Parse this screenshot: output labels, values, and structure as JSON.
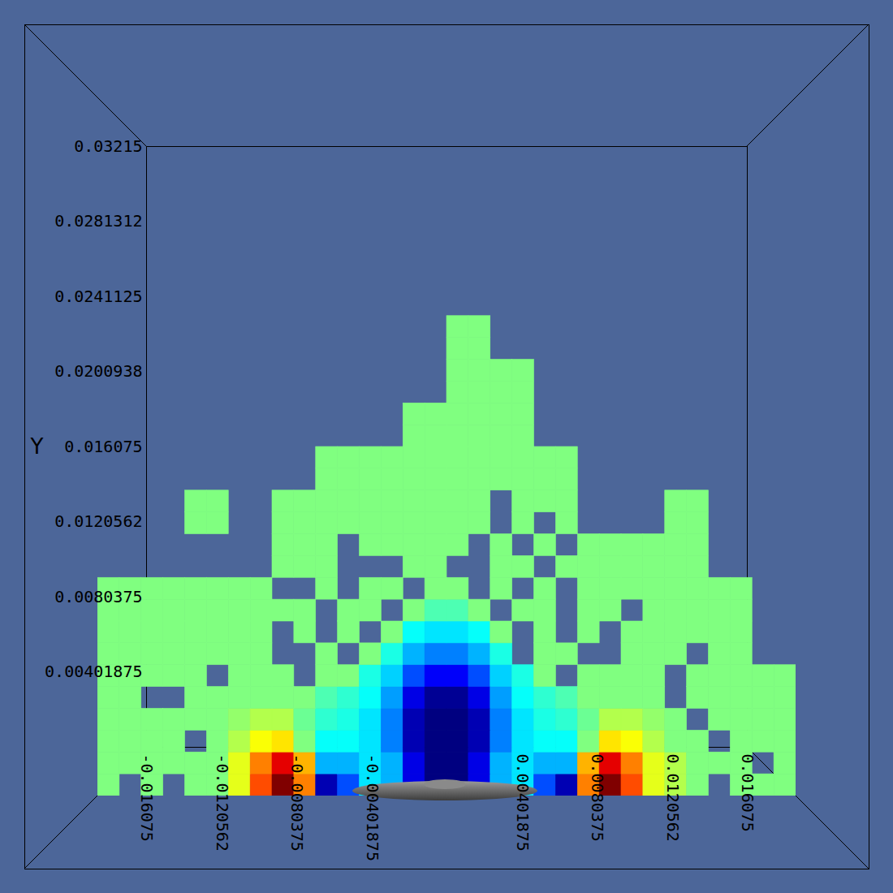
{
  "chart_data": {
    "type": "heatmap",
    "y_label": "Y",
    "xlim": [
      -0.016075,
      0.016075
    ],
    "ylim": [
      0,
      0.03215
    ],
    "xticks": [
      -0.016075,
      -0.0120562,
      -0.0080375,
      -0.00401875,
      0.00401875,
      0.0080375,
      0.0120562,
      0.016075
    ],
    "yticks": [
      0.00401875,
      0.0080375,
      0.0120562,
      0.016075,
      0.0200938,
      0.0241125,
      0.0281312,
      0.03215
    ],
    "value_range": [
      0,
      1
    ],
    "x_edges": [
      -0.016075,
      -0.0150703,
      -0.0140656,
      -0.0130609,
      -0.0120562,
      -0.0110516,
      -0.0100469,
      -0.0090422,
      -0.0080375,
      -0.0070328,
      -0.0060281,
      -0.0050234,
      -0.0040188,
      -0.0030141,
      -0.0020094,
      -0.0010047,
      0,
      0.0010047,
      0.0020094,
      0.0030141,
      0.0040188,
      0.0050234,
      0.0060281,
      0.0070328,
      0.0080375,
      0.0090422,
      0.0100469,
      0.0110516,
      0.0120562,
      0.0130609,
      0.0140656,
      0.0150703,
      0.016075
    ],
    "y_edges": [
      0,
      0.0010047,
      0.0020094,
      0.0030141,
      0.0040188,
      0.0050234,
      0.0060281,
      0.0070328,
      0.0080375,
      0.0090422,
      0.0100469,
      0.0110516,
      0.0120562,
      0.0130609,
      0.0140656,
      0.0150703,
      0.016075,
      0.0170797,
      0.0180844,
      0.0190891,
      0.0200938,
      0.0210984,
      0.0221031
    ],
    "values": [
      [
        0.5,
        null,
        0.5,
        null,
        0.5,
        0.5,
        0.6,
        0.8,
        1,
        0.75,
        0.05,
        0.2,
        0.35,
        0.3,
        0.1,
        0,
        0,
        0.1,
        0.3,
        0.35,
        0.2,
        0.05,
        0.75,
        1,
        0.8,
        0.6,
        0.55,
        0.5,
        null,
        0.5,
        0.5,
        0.5
      ],
      [
        0.5,
        0.5,
        0.5,
        0.5,
        0.5,
        0.5,
        0.6,
        0.75,
        0.9,
        0.7,
        0.3,
        0.3,
        0.35,
        0.3,
        0.1,
        0,
        0,
        0.1,
        0.3,
        0.35,
        0.3,
        0.3,
        0.7,
        0.9,
        0.75,
        0.6,
        0.55,
        0.5,
        0.5,
        0.5,
        null,
        0.5
      ],
      [
        0.5,
        0.5,
        0.5,
        0.5,
        null,
        0.5,
        0.55,
        0.62,
        0.65,
        0.5,
        0.38,
        0.38,
        0.35,
        0.25,
        0.05,
        0,
        0,
        0.05,
        0.25,
        0.35,
        0.38,
        0.38,
        0.5,
        0.65,
        0.62,
        0.55,
        0.5,
        0.5,
        null,
        0.5,
        0.5,
        0.5
      ],
      [
        0.5,
        0.5,
        0.5,
        0.5,
        0.5,
        0.5,
        0.52,
        0.55,
        0.55,
        0.48,
        0.42,
        0.4,
        0.35,
        0.25,
        0.05,
        0,
        0,
        0.05,
        0.25,
        0.35,
        0.4,
        0.42,
        0.48,
        0.55,
        0.55,
        0.52,
        0.5,
        null,
        0.5,
        0.5,
        0.5,
        0.5
      ],
      [
        0.5,
        0.5,
        null,
        null,
        0.5,
        0.5,
        0.5,
        0.5,
        0.5,
        0.5,
        0.45,
        0.42,
        0.38,
        0.28,
        0.1,
        0.02,
        0.02,
        0.1,
        0.28,
        0.38,
        0.42,
        0.45,
        0.5,
        0.5,
        0.5,
        0.5,
        null,
        0.5,
        0.5,
        0.5,
        0.5,
        0.5
      ],
      [
        0.5,
        0.5,
        0.5,
        0.5,
        0.5,
        null,
        0.5,
        0.5,
        0.5,
        null,
        0.5,
        0.5,
        0.4,
        0.33,
        0.2,
        0.12,
        0.12,
        0.2,
        0.33,
        0.4,
        0.5,
        null,
        0.5,
        0.5,
        0.5,
        0.5,
        null,
        0.5,
        0.5,
        0.5,
        0.5,
        0.5
      ],
      [
        0.5,
        0.5,
        0.5,
        0.5,
        0.5,
        0.5,
        0.5,
        0.5,
        null,
        null,
        0.5,
        null,
        0.5,
        0.4,
        0.3,
        0.25,
        0.25,
        0.3,
        0.4,
        null,
        0.5,
        0.5,
        null,
        null,
        0.5,
        0.5,
        0.5,
        null,
        0.5,
        0.5,
        null,
        null
      ],
      [
        0.5,
        0.5,
        0.5,
        0.5,
        0.5,
        0.5,
        0.5,
        0.5,
        null,
        0.5,
        null,
        0.5,
        null,
        0.5,
        0.38,
        0.35,
        0.35,
        0.38,
        0.5,
        null,
        0.5,
        null,
        0.5,
        null,
        0.5,
        0.5,
        0.5,
        0.5,
        0.5,
        0.5,
        null,
        null
      ],
      [
        0.5,
        0.5,
        0.5,
        0.5,
        0.5,
        0.5,
        0.5,
        0.5,
        0.5,
        0.5,
        null,
        0.5,
        0.5,
        null,
        0.5,
        0.45,
        0.45,
        0.5,
        null,
        0.5,
        0.5,
        null,
        0.5,
        0.5,
        null,
        0.5,
        0.5,
        0.5,
        0.5,
        0.5,
        null,
        null
      ],
      [
        0.5,
        0.5,
        0.5,
        0.5,
        0.5,
        0.5,
        0.5,
        0.5,
        null,
        null,
        0.5,
        null,
        0.5,
        0.5,
        null,
        0.5,
        0.5,
        null,
        0.5,
        null,
        0.5,
        null,
        0.5,
        0.5,
        0.5,
        0.5,
        0.5,
        0.5,
        0.5,
        0.5,
        null,
        null
      ],
      [
        null,
        null,
        null,
        null,
        null,
        null,
        null,
        null,
        0.5,
        0.5,
        0.5,
        null,
        null,
        null,
        0.5,
        0.5,
        null,
        null,
        0.5,
        0.5,
        null,
        0.5,
        0.5,
        0.5,
        0.5,
        0.5,
        0.5,
        0.5,
        null,
        null,
        null,
        null
      ],
      [
        null,
        null,
        null,
        null,
        null,
        null,
        null,
        null,
        0.5,
        0.5,
        0.5,
        null,
        0.5,
        0.5,
        0.5,
        0.5,
        0.5,
        null,
        0.5,
        null,
        0.5,
        null,
        0.5,
        0.5,
        0.5,
        0.5,
        0.5,
        0.5,
        null,
        null,
        null,
        null
      ],
      [
        null,
        null,
        null,
        null,
        0.5,
        0.5,
        null,
        null,
        0.5,
        0.5,
        0.5,
        0.5,
        0.5,
        0.5,
        0.5,
        0.5,
        0.5,
        0.5,
        null,
        0.5,
        null,
        0.5,
        null,
        null,
        null,
        null,
        0.5,
        0.5,
        null,
        null,
        null,
        null
      ],
      [
        null,
        null,
        null,
        null,
        0.5,
        0.5,
        null,
        null,
        0.5,
        0.5,
        0.5,
        0.5,
        0.5,
        0.5,
        0.5,
        0.5,
        0.5,
        0.5,
        null,
        0.5,
        0.5,
        0.5,
        null,
        null,
        null,
        null,
        0.5,
        0.5,
        null,
        null,
        null,
        null
      ],
      [
        null,
        null,
        null,
        null,
        null,
        null,
        null,
        null,
        null,
        null,
        0.5,
        0.5,
        0.5,
        0.5,
        0.5,
        0.5,
        0.5,
        0.5,
        0.5,
        0.5,
        0.5,
        0.5,
        null,
        null,
        null,
        null,
        null,
        null,
        null,
        null,
        null,
        null
      ],
      [
        null,
        null,
        null,
        null,
        null,
        null,
        null,
        null,
        null,
        null,
        0.5,
        0.5,
        0.5,
        0.5,
        0.5,
        0.5,
        0.5,
        0.5,
        0.5,
        0.5,
        0.5,
        0.5,
        null,
        null,
        null,
        null,
        null,
        null,
        null,
        null,
        null,
        null
      ],
      [
        null,
        null,
        null,
        null,
        null,
        null,
        null,
        null,
        null,
        null,
        null,
        null,
        null,
        null,
        0.5,
        0.5,
        0.5,
        0.5,
        0.5,
        0.5,
        null,
        null,
        null,
        null,
        null,
        null,
        null,
        null,
        null,
        null,
        null,
        null
      ],
      [
        null,
        null,
        null,
        null,
        null,
        null,
        null,
        null,
        null,
        null,
        null,
        null,
        null,
        null,
        0.5,
        0.5,
        0.5,
        0.5,
        0.5,
        0.5,
        null,
        null,
        null,
        null,
        null,
        null,
        null,
        null,
        null,
        null,
        null,
        null
      ],
      [
        null,
        null,
        null,
        null,
        null,
        null,
        null,
        null,
        null,
        null,
        null,
        null,
        null,
        null,
        null,
        null,
        0.5,
        0.5,
        0.5,
        0.5,
        null,
        null,
        null,
        null,
        null,
        null,
        null,
        null,
        null,
        null,
        null,
        null
      ],
      [
        null,
        null,
        null,
        null,
        null,
        null,
        null,
        null,
        null,
        null,
        null,
        null,
        null,
        null,
        null,
        null,
        0.5,
        0.5,
        0.5,
        0.5,
        null,
        null,
        null,
        null,
        null,
        null,
        null,
        null,
        null,
        null,
        null,
        null
      ],
      [
        null,
        null,
        null,
        null,
        null,
        null,
        null,
        null,
        null,
        null,
        null,
        null,
        null,
        null,
        null,
        null,
        0.5,
        0.5,
        null,
        null,
        null,
        null,
        null,
        null,
        null,
        null,
        null,
        null,
        null,
        null,
        null,
        null
      ],
      [
        null,
        null,
        null,
        null,
        null,
        null,
        null,
        null,
        null,
        null,
        null,
        null,
        null,
        null,
        null,
        null,
        0.5,
        0.5,
        null,
        null,
        null,
        null,
        null,
        null,
        null,
        null,
        null,
        null,
        null,
        null,
        null,
        null
      ]
    ]
  }
}
